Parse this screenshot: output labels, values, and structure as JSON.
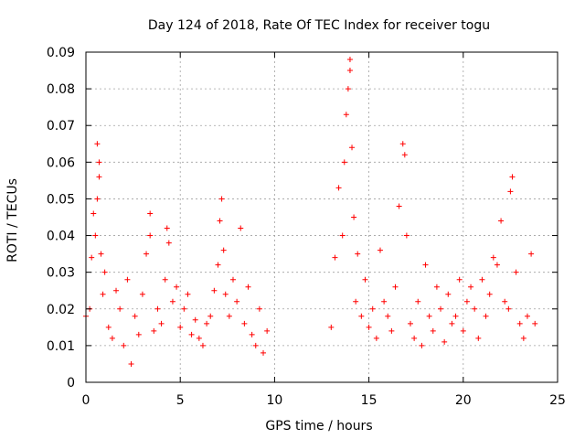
{
  "chart_data": {
    "type": "scatter",
    "title": "Day 124 of 2018, Rate Of TEC Index for receiver togu",
    "xlabel": "GPS time / hours",
    "ylabel": "ROTI / TECUs",
    "xlim": [
      0,
      25
    ],
    "ylim": [
      0,
      0.09
    ],
    "x_ticks": [
      0,
      5,
      10,
      15,
      20,
      25
    ],
    "x_tick_labels": [
      "0",
      "5",
      "10",
      "15",
      "20",
      "25"
    ],
    "y_ticks": [
      0,
      0.01,
      0.02,
      0.03,
      0.04,
      0.05,
      0.06,
      0.07,
      0.08,
      0.09
    ],
    "y_tick_labels": [
      "0",
      "0.01",
      "0.02",
      "0.03",
      "0.04",
      "0.05",
      "0.06",
      "0.07",
      "0.08",
      "0.09"
    ],
    "grid": true,
    "marker": "+",
    "marker_color": "#ff0000",
    "series": [
      {
        "name": "ROTI",
        "x": [
          0.0,
          0.2,
          0.3,
          0.4,
          0.5,
          0.6,
          0.6,
          0.7,
          0.7,
          0.8,
          0.9,
          1.0,
          1.2,
          1.4,
          1.6,
          1.8,
          2.0,
          2.2,
          2.4,
          2.6,
          2.8,
          3.0,
          3.2,
          3.4,
          3.4,
          3.6,
          3.8,
          4.0,
          4.2,
          4.3,
          4.4,
          4.6,
          4.8,
          5.0,
          5.2,
          5.4,
          5.6,
          5.8,
          6.0,
          6.2,
          6.4,
          6.6,
          6.8,
          7.0,
          7.1,
          7.2,
          7.3,
          7.4,
          7.6,
          7.8,
          8.0,
          8.2,
          8.4,
          8.6,
          8.8,
          9.0,
          9.2,
          9.4,
          9.6,
          13.0,
          13.2,
          13.4,
          13.6,
          13.7,
          13.8,
          13.9,
          14.0,
          14.0,
          14.1,
          14.2,
          14.3,
          14.4,
          14.6,
          14.8,
          15.0,
          15.2,
          15.4,
          15.6,
          15.8,
          16.0,
          16.2,
          16.4,
          16.6,
          16.8,
          16.9,
          17.0,
          17.2,
          17.4,
          17.6,
          17.8,
          18.0,
          18.2,
          18.4,
          18.6,
          18.8,
          19.0,
          19.2,
          19.4,
          19.6,
          19.8,
          20.0,
          20.2,
          20.4,
          20.6,
          20.8,
          21.0,
          21.2,
          21.4,
          21.6,
          21.8,
          22.0,
          22.2,
          22.4,
          22.5,
          22.6,
          22.8,
          23.0,
          23.2,
          23.4,
          23.6,
          23.8
        ],
        "y": [
          0.018,
          0.02,
          0.034,
          0.046,
          0.04,
          0.05,
          0.065,
          0.056,
          0.06,
          0.035,
          0.024,
          0.03,
          0.015,
          0.012,
          0.025,
          0.02,
          0.01,
          0.028,
          0.005,
          0.018,
          0.013,
          0.024,
          0.035,
          0.046,
          0.04,
          0.014,
          0.02,
          0.016,
          0.028,
          0.042,
          0.038,
          0.022,
          0.026,
          0.015,
          0.02,
          0.024,
          0.013,
          0.017,
          0.012,
          0.01,
          0.016,
          0.018,
          0.025,
          0.032,
          0.044,
          0.05,
          0.036,
          0.024,
          0.018,
          0.028,
          0.022,
          0.042,
          0.016,
          0.026,
          0.013,
          0.01,
          0.02,
          0.008,
          0.014,
          0.015,
          0.034,
          0.053,
          0.04,
          0.06,
          0.073,
          0.08,
          0.088,
          0.085,
          0.064,
          0.045,
          0.022,
          0.035,
          0.018,
          0.028,
          0.015,
          0.02,
          0.012,
          0.036,
          0.022,
          0.018,
          0.014,
          0.026,
          0.048,
          0.065,
          0.062,
          0.04,
          0.016,
          0.012,
          0.022,
          0.01,
          0.032,
          0.018,
          0.014,
          0.026,
          0.02,
          0.011,
          0.024,
          0.016,
          0.018,
          0.028,
          0.014,
          0.022,
          0.026,
          0.02,
          0.012,
          0.028,
          0.018,
          0.024,
          0.034,
          0.032,
          0.044,
          0.022,
          0.02,
          0.052,
          0.056,
          0.03,
          0.016,
          0.012,
          0.018,
          0.035,
          0.016
        ]
      }
    ]
  }
}
